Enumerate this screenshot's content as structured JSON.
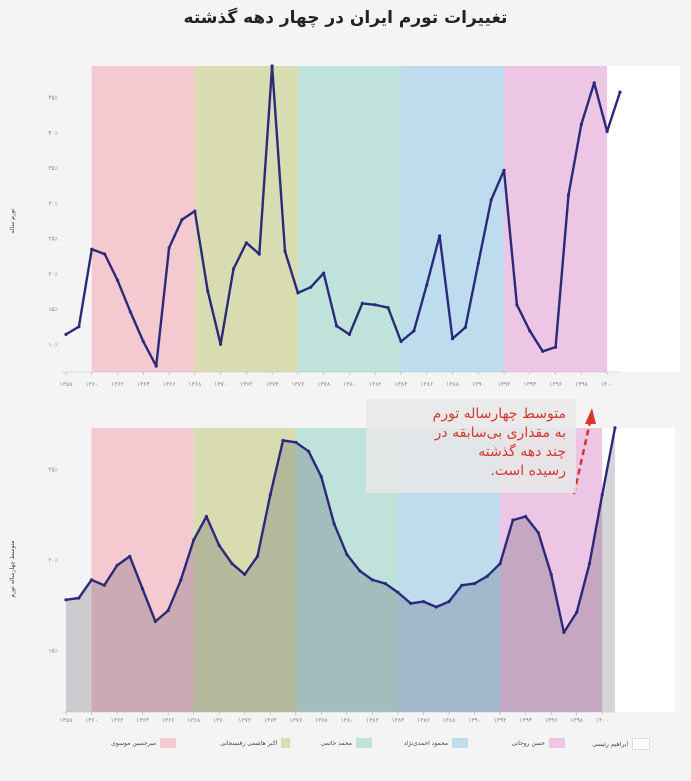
{
  "title": "تغییرات تورم ایران در چهار دهه گذشته",
  "callout": {
    "lines": [
      "متوسط چهارساله تورم",
      "به مقداری بی‌سابقه در",
      "چند دهه گذشته",
      "رسیده است."
    ],
    "color": "#d4382f"
  },
  "colors": {
    "line": "#2b2a7a",
    "mousavi": "#f4c9cf",
    "rafsanjani": "#d9dcb0",
    "khatami": "#bfe3da",
    "ahmadinejad": "#bfdcef",
    "rouhani": "#ecc6e4",
    "raisi": "#ffffff"
  },
  "legend": [
    {
      "label": "میرحسین موسوی",
      "color_key": "mousavi"
    },
    {
      "label": "اکبر هاشمی رفسنجانی",
      "color_key": "rafsanjani"
    },
    {
      "label": "محمد خاتمی",
      "color_key": "khatami"
    },
    {
      "label": "محمود احمدی‌نژاد",
      "color_key": "ahmadinejad"
    },
    {
      "label": "حسن روحانی",
      "color_key": "rouhani"
    },
    {
      "label": "ابراهیم رئیسی",
      "color_key": "raisi"
    }
  ],
  "chart_data": [
    {
      "type": "line",
      "title": "",
      "xlabel": "",
      "ylabel": "تورم ساله",
      "x": [
        1358,
        1359,
        1360,
        1361,
        1362,
        1363,
        1364,
        1365,
        1366,
        1367,
        1368,
        1369,
        1370,
        1371,
        1372,
        1373,
        1374,
        1375,
        1376,
        1377,
        1378,
        1379,
        1380,
        1381,
        1382,
        1383,
        1384,
        1385,
        1386,
        1387,
        1388,
        1389,
        1390,
        1391,
        1392,
        1393,
        1394,
        1395,
        1396,
        1397,
        1398,
        1399,
        1400,
        1401
      ],
      "values": [
        11.4,
        12.5,
        23.5,
        22.8,
        19.1,
        14.6,
        10.4,
        6.9,
        23.7,
        27.7,
        28.9,
        17.6,
        10.0,
        20.7,
        24.4,
        22.8,
        49.5,
        23.2,
        17.3,
        18.1,
        20.1,
        12.6,
        11.4,
        15.8,
        15.6,
        15.2,
        10.4,
        11.9,
        18.4,
        25.4,
        10.8,
        12.4,
        21.5,
        30.5,
        34.7,
        15.6,
        11.9,
        9.0,
        9.6,
        31.2,
        41.2,
        47.1,
        40.2,
        45.8
      ],
      "ylim": [
        5.5,
        49.5
      ],
      "yticks": [
        "۱۰٪",
        "۱۵٪",
        "۲۰٪",
        "۲۵٪",
        "۳۰٪",
        "۳۵٪",
        "۴۰٪",
        "۴۵٪"
      ],
      "ytick_values": [
        10,
        15,
        20,
        25,
        30,
        35,
        40,
        45
      ],
      "xticks": [
        "۱۳۵۸",
        "۱۳۶۰",
        "۱۳۶۲",
        "۱۳۶۴",
        "۱۳۶۶",
        "۱۳۶۸",
        "۱۳۷۰",
        "۱۳۷۲",
        "۱۳۷۴",
        "۱۳۷۶",
        "۱۳۷۸",
        "۱۳۸۰",
        "۱۳۸۲",
        "۱۳۸۴",
        "۱۳۸۶",
        "۱۳۸۸",
        "۱۳۹۰",
        "۱۳۹۲",
        "۱۳۹۴",
        "۱۳۹۶",
        "۱۳۹۸",
        "۱۴۰۰"
      ],
      "grid": false
    },
    {
      "type": "area",
      "title": "",
      "xlabel": "",
      "ylabel": "متوسط چهارساله تورم",
      "x": [
        1358,
        1359,
        1360,
        1361,
        1362,
        1363,
        1364,
        1365,
        1366,
        1367,
        1368,
        1369,
        1370,
        1371,
        1372,
        1373,
        1374,
        1375,
        1376,
        1377,
        1378,
        1379,
        1380,
        1381,
        1382,
        1383,
        1384,
        1385,
        1386,
        1387,
        1388,
        1389,
        1390,
        1391,
        1392,
        1393,
        1394,
        1395,
        1396,
        1397,
        1398,
        1399,
        1400,
        1401
      ],
      "values": [
        17.8,
        17.9,
        18.9,
        18.6,
        19.7,
        20.2,
        18.4,
        16.6,
        17.2,
        18.9,
        21.1,
        22.4,
        20.8,
        19.8,
        19.2,
        20.2,
        23.6,
        26.6,
        26.5,
        26.0,
        24.6,
        22.0,
        20.3,
        19.4,
        18.9,
        18.7,
        18.2,
        17.6,
        17.7,
        17.4,
        17.7,
        18.6,
        18.7,
        19.1,
        19.8,
        22.2,
        22.4,
        21.5,
        19.2,
        16.0,
        17.1,
        19.8,
        23.6,
        27.3
      ],
      "ylim": [
        11.6,
        27.4
      ],
      "yticks": [
        "۱۵٪",
        "۲۰٪",
        "۲۵٪"
      ],
      "ytick_values": [
        15,
        20,
        25
      ],
      "xticks": [
        "۱۳۵۸",
        "۱۳۶۰",
        "۱۳۶۲",
        "۱۳۶۴",
        "۱۳۶۶",
        "۱۳۶۸",
        "۱۳۷۰",
        "۱۳۷۲",
        "۱۳۷۴",
        "۱۳۷۶",
        "۱۳۷۸",
        "۱۳۸۰",
        "۱۳۸۲",
        "۱۳۸۴",
        "۱۳۸۶",
        "۱۳۸۸",
        "۱۳۹۰",
        "۱۳۹۲",
        "۱۳۹۴",
        "۱۳۹۶",
        "۱۳۹۸",
        "۱۴۰۰"
      ],
      "grid": false
    }
  ],
  "eras": [
    {
      "key": "pre",
      "from": 1358,
      "to": 1360
    },
    {
      "key": "mousavi",
      "from": 1360,
      "to": 1368
    },
    {
      "key": "rafsanjani",
      "from": 1368,
      "to": 1376
    },
    {
      "key": "khatami",
      "from": 1376,
      "to": 1384
    },
    {
      "key": "ahmadinejad",
      "from": 1384,
      "to": 1392
    },
    {
      "key": "rouhani",
      "from": 1392,
      "to": 1400
    },
    {
      "key": "raisi",
      "from": 1400,
      "to": 1404
    }
  ]
}
